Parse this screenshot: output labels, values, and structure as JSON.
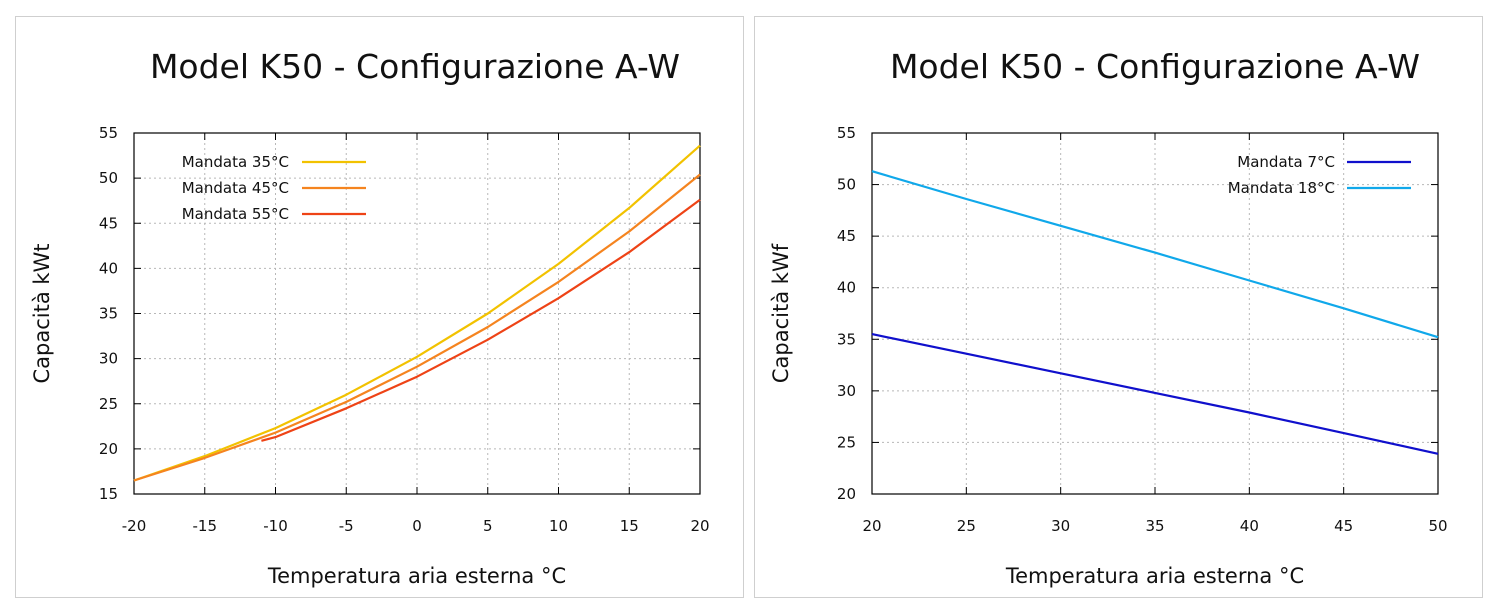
{
  "chart_data": [
    {
      "type": "line",
      "title": "Model K50 - Configurazione A-W",
      "xlabel": "Temperatura aria esterna °C",
      "ylabel": "Capacità kWt",
      "xlim": [
        -20,
        20
      ],
      "ylim": [
        15,
        55
      ],
      "xticks": [
        -20,
        -15,
        -10,
        -5,
        0,
        5,
        10,
        15,
        20
      ],
      "yticks": [
        15,
        20,
        25,
        30,
        35,
        40,
        45,
        50,
        55
      ],
      "grid": true,
      "legend_position": "top-left",
      "series": [
        {
          "name": "Mandata 35°C",
          "color": "#f2c200",
          "x": [
            -20,
            -15,
            -10,
            -5,
            0,
            5,
            10,
            15,
            20
          ],
          "y": [
            16.5,
            19.2,
            22.3,
            26.0,
            30.2,
            35.0,
            40.5,
            46.7,
            53.6
          ]
        },
        {
          "name": "Mandata 45°C",
          "color": "#f5841f",
          "x": [
            -20,
            -15,
            -10,
            -5,
            0,
            5,
            10,
            15,
            20
          ],
          "y": [
            16.5,
            19.0,
            21.8,
            25.2,
            29.1,
            33.5,
            38.5,
            44.1,
            50.4
          ]
        },
        {
          "name": "Mandata 55°C",
          "color": "#ee4316",
          "x": [
            -11,
            -10,
            -5,
            0,
            5,
            10,
            15,
            20
          ],
          "y": [
            20.9,
            21.3,
            24.5,
            28.0,
            32.1,
            36.7,
            41.8,
            47.6
          ]
        }
      ]
    },
    {
      "type": "line",
      "title": "Model K50 - Configurazione A-W",
      "xlabel": "Temperatura aria esterna °C",
      "ylabel": "Capacità kWf",
      "xlim": [
        20,
        50
      ],
      "ylim": [
        20,
        55
      ],
      "xticks": [
        20,
        25,
        30,
        35,
        40,
        45,
        50
      ],
      "yticks": [
        20,
        25,
        30,
        35,
        40,
        45,
        50,
        55
      ],
      "grid": true,
      "legend_position": "top-right",
      "series": [
        {
          "name": "Mandata 7°C",
          "color": "#1010cc",
          "x": [
            20,
            25,
            30,
            35,
            40,
            45,
            50
          ],
          "y": [
            35.5,
            33.6,
            31.7,
            29.8,
            27.9,
            25.9,
            23.9
          ]
        },
        {
          "name": "Mandata 18°C",
          "color": "#10a8ea",
          "x": [
            20,
            25,
            30,
            35,
            40,
            45,
            50
          ],
          "y": [
            51.3,
            48.6,
            46.0,
            43.4,
            40.7,
            38.0,
            35.2
          ]
        }
      ]
    }
  ]
}
